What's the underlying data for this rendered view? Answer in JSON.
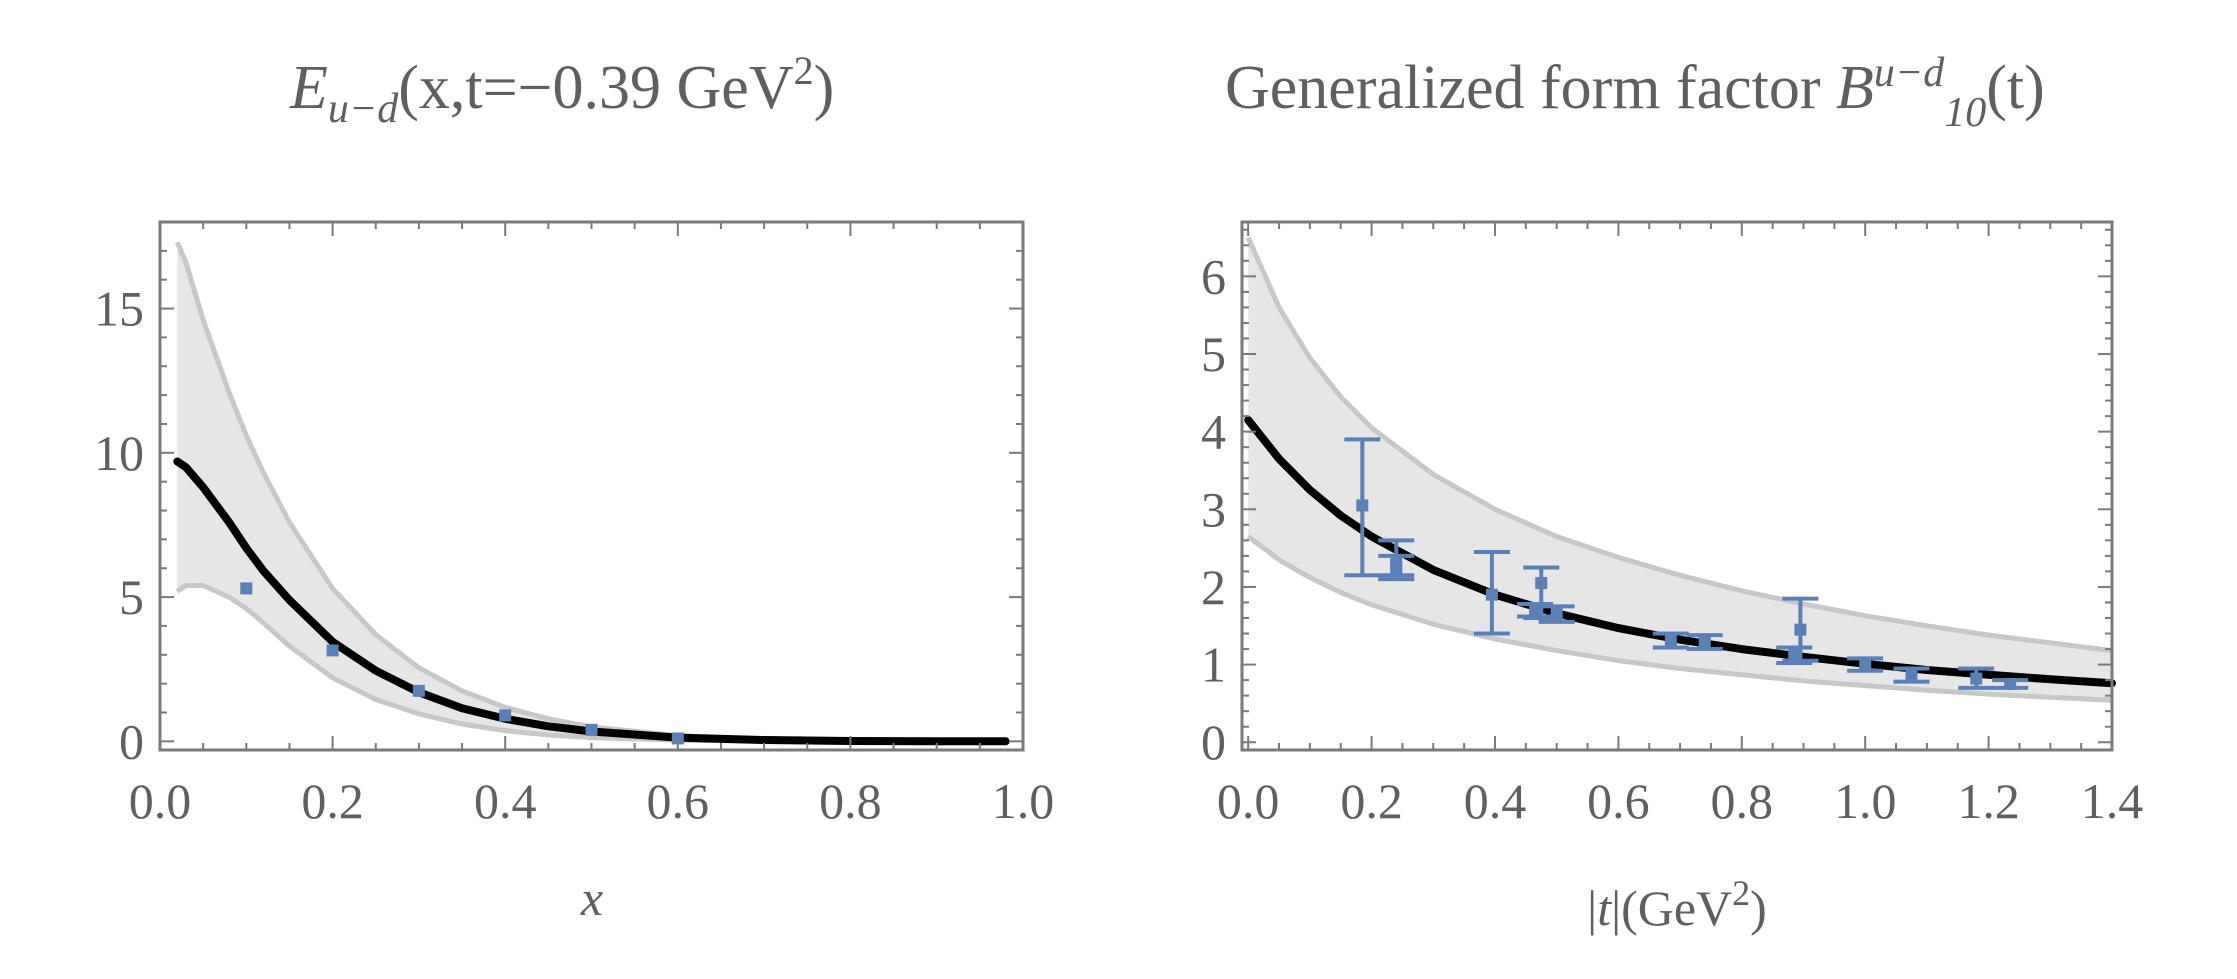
{
  "colors": {
    "band_fill": "#e6e6e6",
    "band_edge": "#c8c8c8",
    "curve": "#000000",
    "points": "#5b80b8",
    "text": "#5f5f5f",
    "frame": "#7a7a7a"
  },
  "chart_data": [
    {
      "type": "line",
      "title": {
        "E": "E",
        "sub": "u−d",
        "args": "(x,t=−0.39 GeV",
        "exp": "2",
        "close": ")"
      },
      "xlabel": "x",
      "ylabel": "",
      "xlim": [
        0,
        1
      ],
      "ylim": [
        -0.3,
        18
      ],
      "xticks": [
        "0.0",
        "0.2",
        "0.4",
        "0.6",
        "0.8",
        "1.0"
      ],
      "xtick_values": [
        0,
        0.2,
        0.4,
        0.6,
        0.8,
        1.0
      ],
      "yticks": [
        "0",
        "5",
        "10",
        "15"
      ],
      "ytick_values": [
        0,
        5,
        10,
        15
      ],
      "grid": false,
      "band": {
        "x": [
          0.02,
          0.03,
          0.05,
          0.08,
          0.1,
          0.12,
          0.15,
          0.2,
          0.25,
          0.3,
          0.35,
          0.4,
          0.45,
          0.5,
          0.6,
          0.7,
          0.8,
          0.9,
          0.98
        ],
        "upper": [
          17.3,
          16.6,
          14.6,
          12.1,
          10.6,
          9.3,
          7.6,
          5.3,
          3.7,
          2.55,
          1.75,
          1.18,
          0.78,
          0.5,
          0.2,
          0.07,
          0.02,
          0.005,
          0.0
        ],
        "lower": [
          5.2,
          5.4,
          5.4,
          5.0,
          4.6,
          4.1,
          3.3,
          2.2,
          1.45,
          0.95,
          0.6,
          0.37,
          0.22,
          0.13,
          0.04,
          0.01,
          0.003,
          0.001,
          0.0
        ]
      },
      "series": [
        {
          "name": "fit",
          "x": [
            0.02,
            0.03,
            0.05,
            0.08,
            0.1,
            0.12,
            0.15,
            0.2,
            0.25,
            0.3,
            0.35,
            0.4,
            0.45,
            0.5,
            0.6,
            0.7,
            0.8,
            0.9,
            0.98
          ],
          "values": [
            9.7,
            9.5,
            8.8,
            7.6,
            6.7,
            5.9,
            4.9,
            3.45,
            2.45,
            1.7,
            1.15,
            0.78,
            0.52,
            0.34,
            0.13,
            0.045,
            0.013,
            0.003,
            0.001
          ]
        }
      ],
      "points": [
        {
          "x": 0.1,
          "y": 5.3
        },
        {
          "x": 0.2,
          "y": 3.15
        },
        {
          "x": 0.3,
          "y": 1.75
        },
        {
          "x": 0.4,
          "y": 0.9
        },
        {
          "x": 0.5,
          "y": 0.4
        },
        {
          "x": 0.6,
          "y": 0.1
        }
      ]
    },
    {
      "type": "line",
      "title": {
        "text": "Generalized form factor ",
        "B": "B",
        "sup": "u−d",
        "sub": "10",
        "args": "(t)"
      },
      "xlabel": {
        "bar1": "|",
        "t": "t",
        "rest": "|(GeV",
        "exp": "2",
        "close": ")"
      },
      "ylabel": "",
      "xlim": [
        -0.01,
        1.4
      ],
      "ylim": [
        -0.1,
        6.7
      ],
      "xticks": [
        "0.0",
        "0.2",
        "0.4",
        "0.6",
        "0.8",
        "1.0",
        "1.2",
        "1.4"
      ],
      "xtick_values": [
        0,
        0.2,
        0.4,
        0.6,
        0.8,
        1.0,
        1.2,
        1.4
      ],
      "yticks": [
        "0",
        "1",
        "2",
        "3",
        "4",
        "5",
        "6"
      ],
      "ytick_values": [
        0,
        1,
        2,
        3,
        4,
        5,
        6
      ],
      "grid": false,
      "band": {
        "x": [
          0.0,
          0.05,
          0.1,
          0.15,
          0.2,
          0.3,
          0.4,
          0.5,
          0.6,
          0.7,
          0.8,
          0.9,
          1.0,
          1.1,
          1.2,
          1.3,
          1.4
        ],
        "upper": [
          6.5,
          5.6,
          4.95,
          4.45,
          4.05,
          3.45,
          3.0,
          2.65,
          2.38,
          2.15,
          1.95,
          1.78,
          1.63,
          1.5,
          1.38,
          1.28,
          1.18
        ],
        "lower": [
          2.65,
          2.35,
          2.12,
          1.93,
          1.77,
          1.52,
          1.33,
          1.18,
          1.05,
          0.95,
          0.87,
          0.79,
          0.73,
          0.67,
          0.62,
          0.58,
          0.54
        ]
      },
      "series": [
        {
          "name": "fit",
          "x": [
            0.0,
            0.05,
            0.1,
            0.15,
            0.2,
            0.3,
            0.4,
            0.5,
            0.6,
            0.7,
            0.8,
            0.9,
            1.0,
            1.1,
            1.2,
            1.3,
            1.4
          ],
          "values": [
            4.15,
            3.65,
            3.25,
            2.92,
            2.65,
            2.22,
            1.9,
            1.66,
            1.47,
            1.32,
            1.2,
            1.1,
            1.01,
            0.93,
            0.87,
            0.81,
            0.76
          ]
        }
      ],
      "points": [
        {
          "x": 0.185,
          "y": 3.05,
          "yerr_low": 2.15,
          "yerr_high": 3.9
        },
        {
          "x": 0.24,
          "y": 2.25,
          "yerr_low": 2.1,
          "yerr_high": 2.6
        },
        {
          "x": 0.24,
          "y": 2.3,
          "yerr_low": 2.15,
          "yerr_high": 2.4
        },
        {
          "x": 0.395,
          "y": 1.9,
          "yerr_low": 1.4,
          "yerr_high": 2.45
        },
        {
          "x": 0.465,
          "y": 1.7,
          "yerr_low": 1.62,
          "yerr_high": 1.78
        },
        {
          "x": 0.475,
          "y": 2.05,
          "yerr_low": 1.6,
          "yerr_high": 2.25
        },
        {
          "x": 0.5,
          "y": 1.65,
          "yerr_low": 1.55,
          "yerr_high": 1.75
        },
        {
          "x": 0.685,
          "y": 1.3,
          "yerr_low": 1.22,
          "yerr_high": 1.4
        },
        {
          "x": 0.74,
          "y": 1.3,
          "yerr_low": 1.2,
          "yerr_high": 1.38
        },
        {
          "x": 0.885,
          "y": 1.12,
          "yerr_low": 1.02,
          "yerr_high": 1.22
        },
        {
          "x": 0.895,
          "y": 1.45,
          "yerr_low": 1.05,
          "yerr_high": 1.85
        },
        {
          "x": 1.0,
          "y": 1.0,
          "yerr_low": 0.92,
          "yerr_high": 1.08
        },
        {
          "x": 1.075,
          "y": 0.85,
          "yerr_low": 0.78,
          "yerr_high": 0.95
        },
        {
          "x": 1.18,
          "y": 0.82,
          "yerr_low": 0.7,
          "yerr_high": 0.95
        },
        {
          "x": 1.235,
          "y": 0.75,
          "yerr_low": 0.7,
          "yerr_high": 0.8
        }
      ]
    }
  ]
}
